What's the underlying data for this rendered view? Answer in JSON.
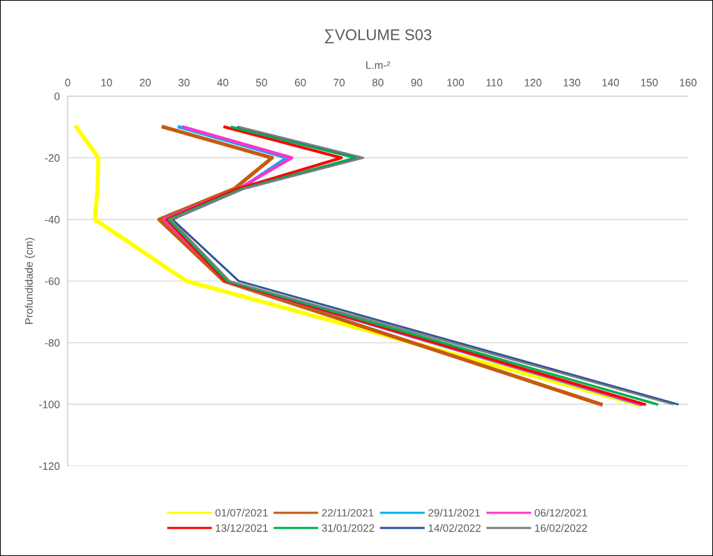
{
  "chart_data": {
    "type": "line",
    "title": "∑VOLUME S03",
    "xlabel": "L.m-²",
    "ylabel": "Profundidade (cm)",
    "xlim": [
      0,
      160
    ],
    "xticks": [
      0,
      10,
      20,
      30,
      40,
      50,
      60,
      70,
      80,
      90,
      100,
      110,
      120,
      130,
      140,
      150,
      160
    ],
    "ylim": [
      -120,
      0
    ],
    "yticks": [
      -120,
      -100,
      -80,
      -60,
      -40,
      -20,
      0
    ],
    "grid": "y",
    "legend": "bottom",
    "marker": "none",
    "line_style": "solid",
    "series": [
      {
        "name": "01/07/2021",
        "color": "#ffff00",
        "x": [
          2.2,
          7.9,
          7.7,
          7.0,
          30.6,
          147.0
        ],
        "values": [
          -10,
          -20,
          -30,
          -40,
          -60,
          -100
        ]
      },
      {
        "name": "22/11/2021",
        "color": "#c55a11",
        "x": [
          24.7,
          52.7,
          43.0,
          23.6,
          40.3,
          137.5
        ],
        "values": [
          -10,
          -20,
          -30,
          -40,
          -60,
          -100
        ]
      },
      {
        "name": "29/11/2021",
        "color": "#00b0f0",
        "x": [
          28.8,
          56.5,
          44.6,
          25.2,
          40.8,
          147.6
        ],
        "values": [
          -10,
          -20,
          -30,
          -40,
          -60,
          -100
        ]
      },
      {
        "name": "06/12/2021",
        "color": "#ff33cc",
        "x": [
          29.9,
          57.8,
          44.1,
          24.8,
          40.8,
          148.0
        ],
        "values": [
          -10,
          -20,
          -30,
          -40,
          -60,
          -100
        ]
      },
      {
        "name": "13/12/2021",
        "color": "#ff0000",
        "x": [
          40.5,
          70.6,
          44.0,
          25.6,
          40.7,
          148.8
        ],
        "values": [
          -10,
          -20,
          -30,
          -40,
          -60,
          -100
        ]
      },
      {
        "name": "31/01/2022",
        "color": "#00b050",
        "x": [
          42.3,
          74.2,
          45.0,
          26.1,
          41.2,
          152.0
        ],
        "values": [
          -10,
          -20,
          -30,
          -40,
          -60,
          -100
        ]
      },
      {
        "name": "14/02/2022",
        "color": "#2f5597",
        "x": [
          44.0,
          76.0,
          45.5,
          27.0,
          44.1,
          157.3
        ],
        "values": [
          -10,
          -20,
          -30,
          -40,
          -60,
          -100
        ]
      },
      {
        "name": "16/02/2022",
        "color": "#808080",
        "x": [
          44.3,
          76.3,
          45.5,
          26.6,
          41.8,
          156.0
        ],
        "values": [
          -10,
          -20,
          -30,
          -40,
          -60,
          -100
        ]
      }
    ]
  }
}
